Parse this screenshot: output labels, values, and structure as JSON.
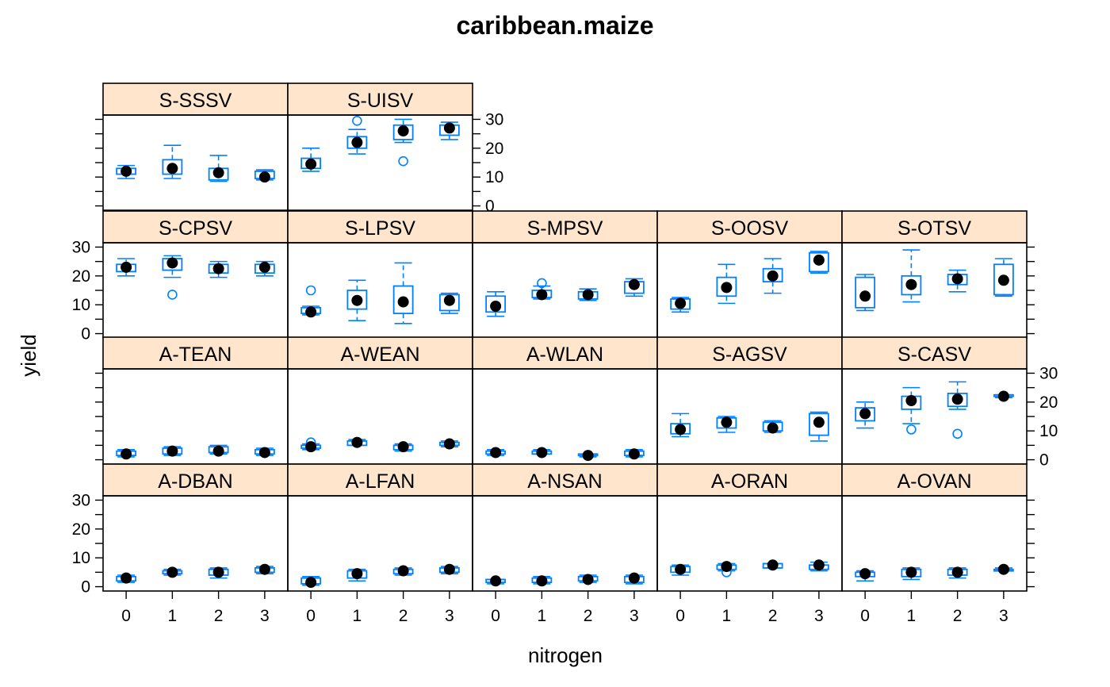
{
  "chart_data": {
    "type": "box-and-whisker",
    "title": "caribbean.maize",
    "xlabel": "nitrogen",
    "ylabel": "yield",
    "x_categories": [
      "0",
      "1",
      "2",
      "3"
    ],
    "y_ticks": [
      0,
      10,
      20,
      30
    ],
    "ylim": [
      -1.5,
      31.5
    ],
    "layout": {
      "columns": 5,
      "rows": 4
    },
    "colors": {
      "box": "#0080ff",
      "strip": "#ffe5cc",
      "median_dot": "#000000",
      "frame": "#000000"
    },
    "panels": [
      {
        "name": "S-SSSV",
        "row": 1,
        "col": 1,
        "boxes": [
          {
            "x": "0",
            "min": 9.5,
            "q1": 11,
            "median": 12,
            "q3": 13,
            "max": 14,
            "outliers": []
          },
          {
            "x": "1",
            "min": 9.5,
            "q1": 11,
            "median": 13,
            "q3": 16,
            "max": 21,
            "outliers": []
          },
          {
            "x": "2",
            "min": 8.5,
            "q1": 9,
            "median": 11.5,
            "q3": 13,
            "max": 17.5,
            "outliers": []
          },
          {
            "x": "3",
            "min": 9,
            "q1": 9.5,
            "median": 10,
            "q3": 12,
            "max": 12.5,
            "outliers": []
          }
        ]
      },
      {
        "name": "S-UISV",
        "row": 1,
        "col": 2,
        "boxes": [
          {
            "x": "0",
            "min": 12,
            "q1": 13,
            "median": 14.5,
            "q3": 16.5,
            "max": 20,
            "outliers": []
          },
          {
            "x": "1",
            "min": 18,
            "q1": 20,
            "median": 22,
            "q3": 24,
            "max": 26.5,
            "outliers": [
              29.5
            ]
          },
          {
            "x": "2",
            "min": 22,
            "q1": 23,
            "median": 26,
            "q3": 28,
            "max": 30,
            "outliers": [
              15.5
            ]
          },
          {
            "x": "3",
            "min": 23,
            "q1": 24.5,
            "median": 27,
            "q3": 28,
            "max": 29,
            "outliers": []
          }
        ]
      },
      {
        "name": "S-CPSV",
        "row": 2,
        "col": 1,
        "boxes": [
          {
            "x": "0",
            "min": 20,
            "q1": 21.5,
            "median": 23,
            "q3": 24,
            "max": 26,
            "outliers": []
          },
          {
            "x": "1",
            "min": 19.5,
            "q1": 22,
            "median": 24.5,
            "q3": 26,
            "max": 27,
            "outliers": [
              13.5
            ]
          },
          {
            "x": "2",
            "min": 19.5,
            "q1": 21,
            "median": 22.5,
            "q3": 24,
            "max": 25,
            "outliers": []
          },
          {
            "x": "3",
            "min": 20,
            "q1": 21,
            "median": 23,
            "q3": 24,
            "max": 25,
            "outliers": []
          }
        ]
      },
      {
        "name": "S-LPSV",
        "row": 2,
        "col": 2,
        "boxes": [
          {
            "x": "0",
            "min": 6.5,
            "q1": 7,
            "median": 7.5,
            "q3": 9,
            "max": 9.5,
            "outliers": [
              15
            ]
          },
          {
            "x": "1",
            "min": 4.5,
            "q1": 8.5,
            "median": 11.5,
            "q3": 15,
            "max": 18.5,
            "outliers": []
          },
          {
            "x": "2",
            "min": 3.5,
            "q1": 7,
            "median": 11,
            "q3": 16.5,
            "max": 24.5,
            "outliers": []
          },
          {
            "x": "3",
            "min": 7,
            "q1": 8,
            "median": 11.5,
            "q3": 13.5,
            "max": 14,
            "outliers": []
          }
        ]
      },
      {
        "name": "S-MPSV",
        "row": 2,
        "col": 3,
        "boxes": [
          {
            "x": "0",
            "min": 6,
            "q1": 7.5,
            "median": 9.5,
            "q3": 13,
            "max": 14.5,
            "outliers": []
          },
          {
            "x": "1",
            "min": 12,
            "q1": 12.5,
            "median": 13.5,
            "q3": 15,
            "max": 16.5,
            "outliers": [
              17.5
            ]
          },
          {
            "x": "2",
            "min": 11.5,
            "q1": 12,
            "median": 13.5,
            "q3": 14.5,
            "max": 15.5,
            "outliers": []
          },
          {
            "x": "3",
            "min": 13,
            "q1": 14,
            "median": 17,
            "q3": 18,
            "max": 19,
            "outliers": []
          }
        ]
      },
      {
        "name": "S-OOSV",
        "row": 2,
        "col": 4,
        "boxes": [
          {
            "x": "0",
            "min": 7.5,
            "q1": 8.5,
            "median": 10.5,
            "q3": 12,
            "max": 12.5,
            "outliers": []
          },
          {
            "x": "1",
            "min": 10.5,
            "q1": 13,
            "median": 16,
            "q3": 19.5,
            "max": 24,
            "outliers": []
          },
          {
            "x": "2",
            "min": 14,
            "q1": 18,
            "median": 20,
            "q3": 22.5,
            "max": 26,
            "outliers": []
          },
          {
            "x": "3",
            "min": 21,
            "q1": 21.5,
            "median": 25.5,
            "q3": 28,
            "max": 28.5,
            "outliers": []
          }
        ]
      },
      {
        "name": "S-OTSV",
        "row": 2,
        "col": 5,
        "boxes": [
          {
            "x": "0",
            "min": 8,
            "q1": 9,
            "median": 13,
            "q3": 19.5,
            "max": 20.5,
            "outliers": []
          },
          {
            "x": "1",
            "min": 11,
            "q1": 13.5,
            "median": 17,
            "q3": 20,
            "max": 29,
            "outliers": []
          },
          {
            "x": "2",
            "min": 14.5,
            "q1": 17,
            "median": 19,
            "q3": 20.5,
            "max": 22,
            "outliers": []
          },
          {
            "x": "3",
            "min": 13,
            "q1": 13.5,
            "median": 18.5,
            "q3": 24,
            "max": 26,
            "outliers": []
          }
        ]
      },
      {
        "name": "A-TEAN",
        "row": 3,
        "col": 1,
        "boxes": [
          {
            "x": "0",
            "min": 1,
            "q1": 1.5,
            "median": 2,
            "q3": 3,
            "max": 3.5,
            "outliers": []
          },
          {
            "x": "1",
            "min": 1.5,
            "q1": 2,
            "median": 3,
            "q3": 4,
            "max": 4.5,
            "outliers": []
          },
          {
            "x": "2",
            "min": 2,
            "q1": 2.5,
            "median": 3,
            "q3": 4.5,
            "max": 5,
            "outliers": []
          },
          {
            "x": "3",
            "min": 1.5,
            "q1": 2,
            "median": 2.5,
            "q3": 3.5,
            "max": 4,
            "outliers": []
          }
        ]
      },
      {
        "name": "A-WEAN",
        "row": 3,
        "col": 2,
        "boxes": [
          {
            "x": "0",
            "min": 3.5,
            "q1": 4,
            "median": 4.5,
            "q3": 5,
            "max": 5.5,
            "outliers": [
              6
            ]
          },
          {
            "x": "1",
            "min": 5,
            "q1": 5,
            "median": 6,
            "q3": 6.5,
            "max": 7,
            "outliers": []
          },
          {
            "x": "2",
            "min": 3,
            "q1": 3.5,
            "median": 4.5,
            "q3": 5,
            "max": 5.5,
            "outliers": []
          },
          {
            "x": "3",
            "min": 4.5,
            "q1": 5,
            "median": 5.5,
            "q3": 6,
            "max": 6.5,
            "outliers": []
          }
        ]
      },
      {
        "name": "A-WLAN",
        "row": 3,
        "col": 3,
        "boxes": [
          {
            "x": "0",
            "min": 1.5,
            "q1": 2,
            "median": 2.5,
            "q3": 3,
            "max": 3.5,
            "outliers": []
          },
          {
            "x": "1",
            "min": 2,
            "q1": 2,
            "median": 2.5,
            "q3": 3,
            "max": 3.5,
            "outliers": []
          },
          {
            "x": "2",
            "min": 1,
            "q1": 1.5,
            "median": 1.5,
            "q3": 2,
            "max": 2,
            "outliers": []
          },
          {
            "x": "3",
            "min": 1,
            "q1": 1.5,
            "median": 2,
            "q3": 3,
            "max": 3.5,
            "outliers": []
          }
        ]
      },
      {
        "name": "S-AGSV",
        "row": 3,
        "col": 4,
        "boxes": [
          {
            "x": "0",
            "min": 8,
            "q1": 9,
            "median": 10.5,
            "q3": 12.5,
            "max": 16,
            "outliers": []
          },
          {
            "x": "1",
            "min": 9.5,
            "q1": 11,
            "median": 13,
            "q3": 14.5,
            "max": 15,
            "outliers": []
          },
          {
            "x": "2",
            "min": 9.5,
            "q1": 10,
            "median": 11,
            "q3": 13,
            "max": 13.5,
            "outliers": []
          },
          {
            "x": "3",
            "min": 6.5,
            "q1": 8.5,
            "median": 13,
            "q3": 16,
            "max": 16.5,
            "outliers": []
          }
        ]
      },
      {
        "name": "S-CASV",
        "row": 3,
        "col": 5,
        "boxes": [
          {
            "x": "0",
            "min": 11,
            "q1": 13.5,
            "median": 16,
            "q3": 18,
            "max": 20,
            "outliers": []
          },
          {
            "x": "1",
            "min": 12.5,
            "q1": 17.5,
            "median": 20.5,
            "q3": 22,
            "max": 25,
            "outliers": [
              10.5
            ]
          },
          {
            "x": "2",
            "min": 17.5,
            "q1": 18.5,
            "median": 21,
            "q3": 23,
            "max": 27,
            "outliers": [
              9
            ]
          },
          {
            "x": "3",
            "min": 21.5,
            "q1": 22,
            "median": 22,
            "q3": 22.5,
            "max": 22.5,
            "outliers": []
          }
        ]
      },
      {
        "name": "A-DBAN",
        "row": 4,
        "col": 1,
        "boxes": [
          {
            "x": "0",
            "min": 1.5,
            "q1": 2,
            "median": 3,
            "q3": 3.5,
            "max": 4,
            "outliers": []
          },
          {
            "x": "1",
            "min": 4,
            "q1": 4.5,
            "median": 5,
            "q3": 5.5,
            "max": 6,
            "outliers": []
          },
          {
            "x": "2",
            "min": 3,
            "q1": 4,
            "median": 5,
            "q3": 6,
            "max": 6.5,
            "outliers": []
          },
          {
            "x": "3",
            "min": 4.5,
            "q1": 5,
            "median": 6,
            "q3": 6.5,
            "max": 7,
            "outliers": []
          }
        ]
      },
      {
        "name": "A-LFAN",
        "row": 4,
        "col": 2,
        "boxes": [
          {
            "x": "0",
            "min": 0.5,
            "q1": 1,
            "median": 1.5,
            "q3": 3,
            "max": 3.5,
            "outliers": []
          },
          {
            "x": "1",
            "min": 2,
            "q1": 3,
            "median": 4.5,
            "q3": 5.5,
            "max": 6,
            "outliers": []
          },
          {
            "x": "2",
            "min": 4,
            "q1": 4.5,
            "median": 5.5,
            "q3": 6,
            "max": 6.5,
            "outliers": []
          },
          {
            "x": "3",
            "min": 4.5,
            "q1": 5,
            "median": 6,
            "q3": 6.5,
            "max": 7,
            "outliers": []
          }
        ]
      },
      {
        "name": "A-NSAN",
        "row": 4,
        "col": 3,
        "boxes": [
          {
            "x": "0",
            "min": 1,
            "q1": 1.5,
            "median": 2,
            "q3": 2.5,
            "max": 2.5,
            "outliers": []
          },
          {
            "x": "1",
            "min": 1,
            "q1": 1.5,
            "median": 2,
            "q3": 3,
            "max": 3.5,
            "outliers": []
          },
          {
            "x": "2",
            "min": 1.5,
            "q1": 2,
            "median": 2.5,
            "q3": 3.5,
            "max": 4,
            "outliers": []
          },
          {
            "x": "3",
            "min": 1,
            "q1": 1.5,
            "median": 3,
            "q3": 3.5,
            "max": 4,
            "outliers": []
          }
        ]
      },
      {
        "name": "A-ORAN",
        "row": 4,
        "col": 4,
        "boxes": [
          {
            "x": "0",
            "min": 4,
            "q1": 5,
            "median": 6,
            "q3": 7,
            "max": 7.5,
            "outliers": []
          },
          {
            "x": "1",
            "min": 5.5,
            "q1": 6,
            "median": 7,
            "q3": 7.5,
            "max": 8,
            "outliers": [
              5
            ]
          },
          {
            "x": "2",
            "min": 6.5,
            "q1": 6.5,
            "median": 7.5,
            "q3": 8,
            "max": 8,
            "outliers": []
          },
          {
            "x": "3",
            "min": 5.5,
            "q1": 6,
            "median": 7.5,
            "q3": 7.5,
            "max": 8.5,
            "outliers": []
          }
        ]
      },
      {
        "name": "A-OVAN",
        "row": 4,
        "col": 5,
        "boxes": [
          {
            "x": "0",
            "min": 2,
            "q1": 3.5,
            "median": 4.5,
            "q3": 5,
            "max": 5.5,
            "outliers": []
          },
          {
            "x": "1",
            "min": 2.5,
            "q1": 3.5,
            "median": 5,
            "q3": 6,
            "max": 6.5,
            "outliers": []
          },
          {
            "x": "2",
            "min": 3,
            "q1": 4,
            "median": 5,
            "q3": 6,
            "max": 6.5,
            "outliers": []
          },
          {
            "x": "3",
            "min": 5.5,
            "q1": 5.5,
            "median": 6,
            "q3": 6,
            "max": 6.5,
            "outliers": []
          }
        ]
      }
    ]
  }
}
